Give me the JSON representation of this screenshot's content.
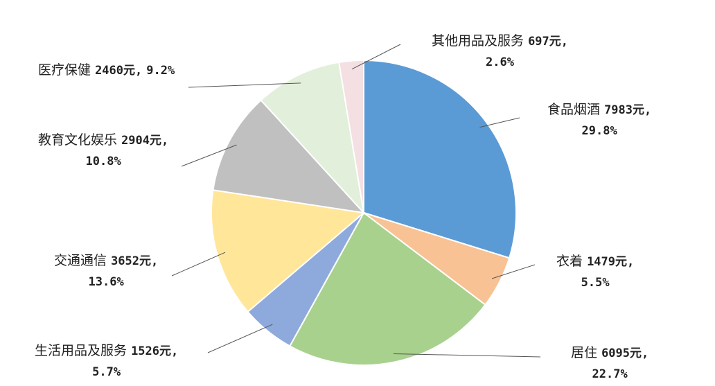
{
  "chart_data": {
    "type": "pie",
    "title": "",
    "unit": "元",
    "slices": [
      {
        "name": "食品烟酒",
        "value": 7983,
        "amount_text": "7983元,",
        "percent": 29.8,
        "percent_text": "29.8%",
        "color": "#5b9bd5"
      },
      {
        "name": "衣着",
        "value": 1479,
        "amount_text": "1479元,",
        "percent": 5.5,
        "percent_text": "5.5%",
        "color": "#f8c294"
      },
      {
        "name": "居住",
        "value": 6095,
        "amount_text": "6095元,",
        "percent": 22.7,
        "percent_text": "22.7%",
        "color": "#a9d18e"
      },
      {
        "name": "生活用品及服务",
        "value": 1526,
        "amount_text": "1526元,",
        "percent": 5.7,
        "percent_text": "5.7%",
        "color": "#8eaadc"
      },
      {
        "name": "交通通信",
        "value": 3652,
        "amount_text": "3652元,",
        "percent": 13.6,
        "percent_text": "13.6%",
        "color": "#ffe699"
      },
      {
        "name": "教育文化娱乐",
        "value": 2904,
        "amount_text": "2904元,",
        "percent": 10.8,
        "percent_text": "10.8%",
        "color": "#c0c0c0"
      },
      {
        "name": "医疗保健",
        "value": 2460,
        "amount_text": "2460元,",
        "percent": 9.2,
        "percent_text": "9.2%",
        "color": "#e2efda"
      },
      {
        "name": "其他用品及服务",
        "value": 697,
        "amount_text": "697元,",
        "percent": 2.6,
        "percent_text": "2.6%",
        "color": "#f4dfe3"
      }
    ]
  }
}
